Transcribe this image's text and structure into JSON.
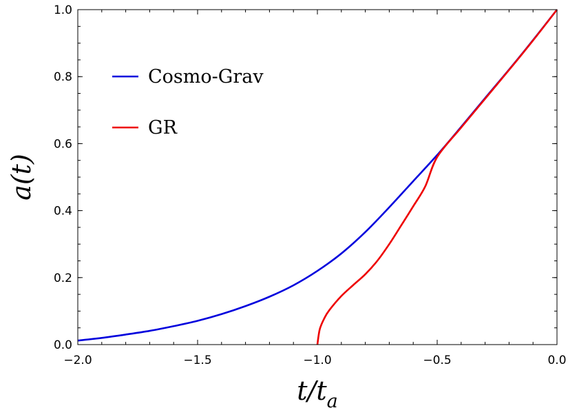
{
  "chart_data": {
    "type": "line",
    "title": "",
    "xlabel": "t/t_a",
    "ylabel": "a(t)",
    "xlim": [
      -2.0,
      0.0
    ],
    "ylim": [
      0.0,
      1.0
    ],
    "grid": false,
    "legend_position": "upper-left",
    "x_ticks": [
      "−2.0",
      "−1.5",
      "−1.0",
      "−0.5",
      "0.0"
    ],
    "x_tick_values": [
      -2.0,
      -1.5,
      -1.0,
      -0.5,
      0.0
    ],
    "y_ticks": [
      "0.0",
      "0.2",
      "0.4",
      "0.6",
      "0.8",
      "1.0"
    ],
    "y_tick_values": [
      0.0,
      0.2,
      0.4,
      0.6,
      0.8,
      1.0
    ],
    "series": [
      {
        "name": "Cosmo-Grav",
        "color": "#0000dd",
        "x": [
          -2.0,
          -1.9,
          -1.8,
          -1.7,
          -1.6,
          -1.5,
          -1.4,
          -1.3,
          -1.2,
          -1.1,
          -1.0,
          -0.9,
          -0.8,
          -0.7,
          -0.6,
          -0.5,
          -0.4,
          -0.3,
          -0.2,
          -0.1,
          0.0
        ],
        "y": [
          0.012,
          0.02,
          0.03,
          0.041,
          0.055,
          0.071,
          0.091,
          0.115,
          0.143,
          0.177,
          0.22,
          0.272,
          0.336,
          0.41,
          0.488,
          0.566,
          0.65,
          0.736,
          0.821,
          0.909,
          1.0
        ]
      },
      {
        "name": "GR",
        "color": "#ee0000",
        "x": [
          -1.0,
          -0.99,
          -0.97,
          -0.95,
          -0.9,
          -0.85,
          -0.8,
          -0.75,
          -0.7,
          -0.65,
          -0.6,
          -0.55,
          -0.5,
          -0.4,
          -0.3,
          -0.2,
          -0.1,
          0.0
        ],
        "y": [
          0.0,
          0.046,
          0.08,
          0.103,
          0.145,
          0.178,
          0.21,
          0.25,
          0.3,
          0.356,
          0.413,
          0.472,
          0.56,
          0.648,
          0.734,
          0.82,
          0.908,
          1.0
        ]
      }
    ]
  }
}
